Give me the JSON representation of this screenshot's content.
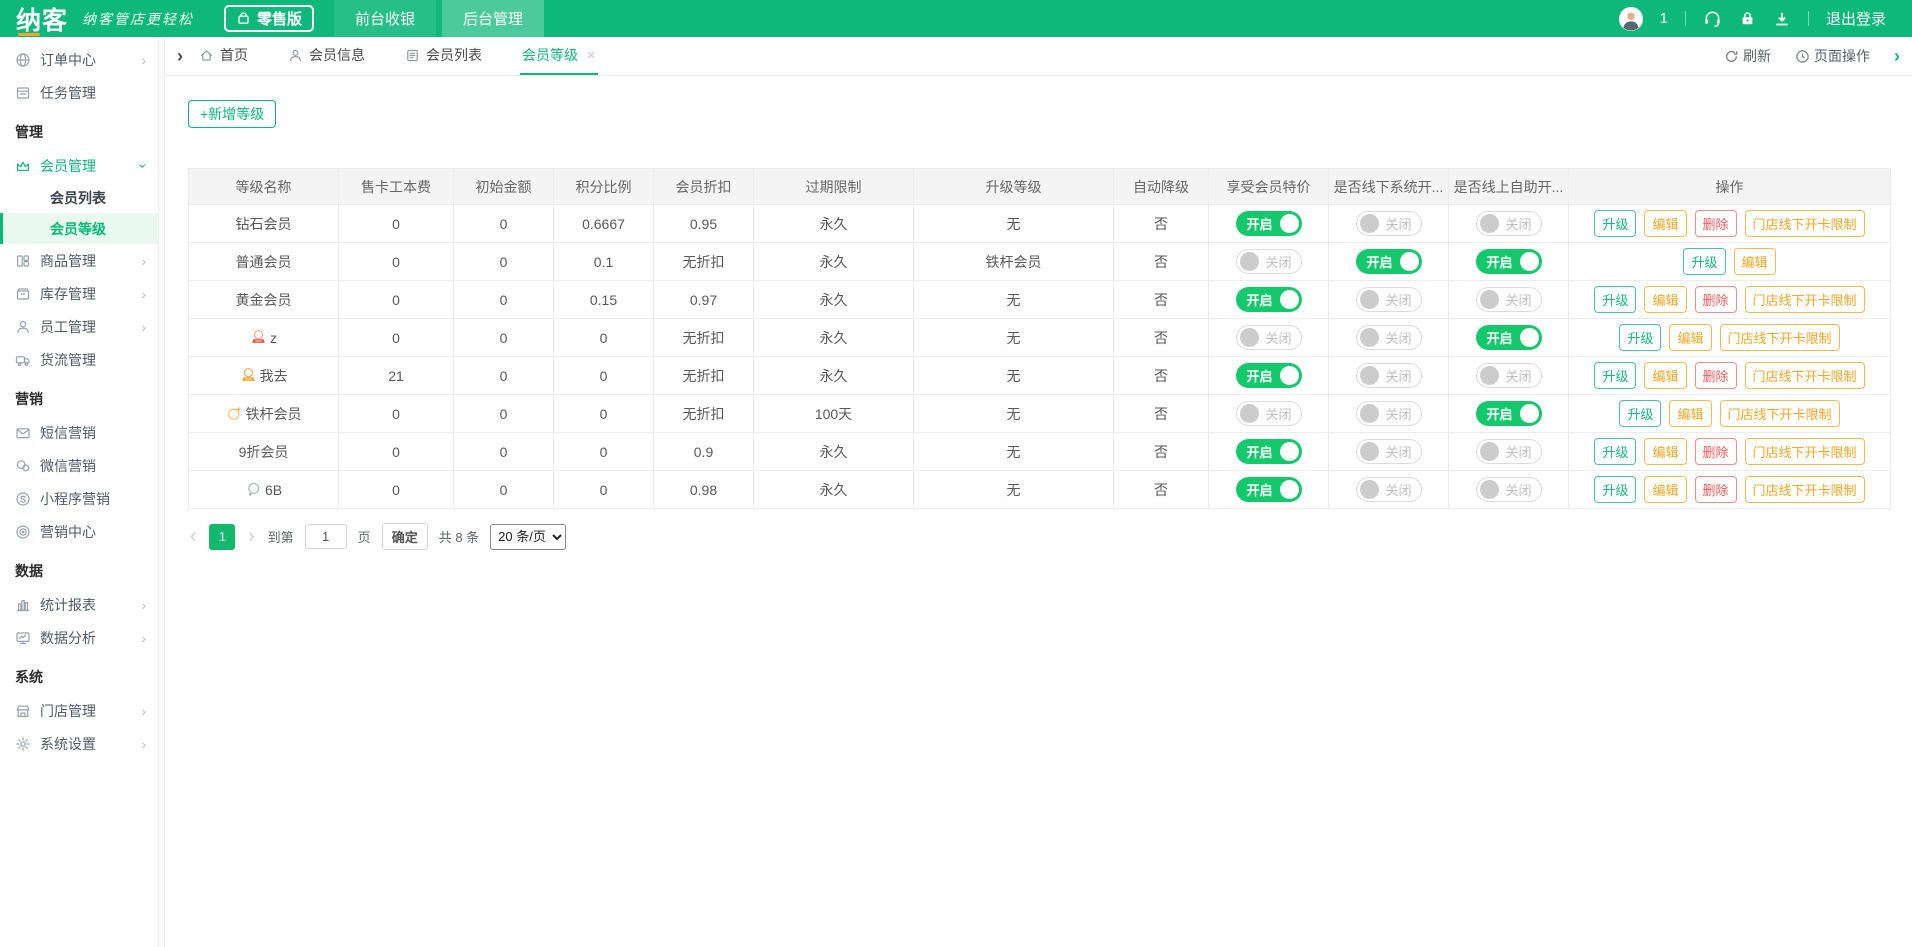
{
  "colors": {
    "brand_green": "#0db87a",
    "toggle_on_green": "#13c96c",
    "accent_orange": "#f5a623",
    "accent_red": "#f45c5c"
  },
  "header": {
    "logo": "纳客",
    "slogan": "纳客管店更轻松",
    "edition": "零售版",
    "nav": [
      {
        "key": "front-cashier",
        "label": "前台收银",
        "active": false
      },
      {
        "key": "backend-admin",
        "label": "后台管理",
        "active": true
      }
    ],
    "user_count": "1",
    "icons": [
      "headset-icon",
      "lock-icon",
      "download-icon"
    ],
    "logout": "退出登录"
  },
  "sidebar": {
    "items": [
      {
        "type": "item",
        "key": "order-center",
        "label": "订单中心",
        "icon": "globe-icon",
        "chevron": "right"
      },
      {
        "type": "item",
        "key": "task-management",
        "label": "任务管理",
        "icon": "tasks-icon",
        "chevron": null
      },
      {
        "type": "section",
        "key": "management",
        "label": "管理"
      },
      {
        "type": "item",
        "key": "member-management",
        "label": "会员管理",
        "icon": "crown-icon",
        "chevron": "down",
        "active": true
      },
      {
        "type": "subitem",
        "key": "member-list",
        "label": "会员列表",
        "active": false
      },
      {
        "type": "subitem",
        "key": "member-level",
        "label": "会员等级",
        "active": true
      },
      {
        "type": "item",
        "key": "product-management",
        "label": "商品管理",
        "icon": "products-icon",
        "chevron": "right"
      },
      {
        "type": "item",
        "key": "inventory-management",
        "label": "库存管理",
        "icon": "box-icon",
        "chevron": "right"
      },
      {
        "type": "item",
        "key": "staff-management",
        "label": "员工管理",
        "icon": "person-icon",
        "chevron": "right"
      },
      {
        "type": "item",
        "key": "logistics-management",
        "label": "货流管理",
        "icon": "truck-icon",
        "chevron": null
      },
      {
        "type": "section",
        "key": "marketing",
        "label": "营销"
      },
      {
        "type": "item",
        "key": "sms-marketing",
        "label": "短信营销",
        "icon": "mail-icon",
        "chevron": null
      },
      {
        "type": "item",
        "key": "wechat-marketing",
        "label": "微信营销",
        "icon": "wechat-icon",
        "chevron": null
      },
      {
        "type": "item",
        "key": "miniprogram-marketing",
        "label": "小程序营销",
        "icon": "miniprogram-icon",
        "chevron": null
      },
      {
        "type": "item",
        "key": "marketing-center",
        "label": "营销中心",
        "icon": "target-icon",
        "chevron": null
      },
      {
        "type": "section",
        "key": "data",
        "label": "数据"
      },
      {
        "type": "item",
        "key": "statistics-report",
        "label": "统计报表",
        "icon": "chart-icon",
        "chevron": "right"
      },
      {
        "type": "item",
        "key": "data-analysis",
        "label": "数据分析",
        "icon": "monitor-icon",
        "chevron": "right"
      },
      {
        "type": "section",
        "key": "system",
        "label": "系统"
      },
      {
        "type": "item",
        "key": "store-management",
        "label": "门店管理",
        "icon": "store-icon",
        "chevron": "right"
      },
      {
        "type": "item",
        "key": "system-settings",
        "label": "系统设置",
        "icon": "gear-icon",
        "chevron": "right"
      }
    ]
  },
  "tabbar": {
    "tabs": [
      {
        "key": "home",
        "label": "首页",
        "icon": "home-icon",
        "active": false,
        "closable": false
      },
      {
        "key": "member-info",
        "label": "会员信息",
        "icon": "user-icon",
        "active": false,
        "closable": false
      },
      {
        "key": "member-list",
        "label": "会员列表",
        "icon": "list-icon",
        "active": false,
        "closable": false
      },
      {
        "key": "member-level",
        "label": "会员等级",
        "icon": null,
        "active": true,
        "closable": true
      }
    ],
    "refresh": "刷新",
    "page_actions": "页面操作"
  },
  "toolbar": {
    "add_level": "+新增等级"
  },
  "table": {
    "columns": [
      "等级名称",
      "售卡工本费",
      "初始金额",
      "积分比例",
      "会员折扣",
      "过期限制",
      "升级等级",
      "自动降级",
      "享受会员特价",
      "是否线下系统开...",
      "是否线上自助开...",
      "操作"
    ],
    "toggle_labels": {
      "on": "开启",
      "off": "关闭"
    },
    "action_labels": {
      "upgrade": "升级",
      "edit": "编辑",
      "delete": "删除",
      "limit": "门店线下开卡限制"
    },
    "rows": [
      {
        "name": "钻石会员",
        "badge": null,
        "card_fee": "0",
        "initial_amount": "0",
        "points_ratio": "0.6667",
        "discount": "0.95",
        "expire": "永久",
        "upgrade_to": "无",
        "auto_downgrade": "否",
        "member_special": "on",
        "offline_open": "off",
        "online_open": "off",
        "actions": [
          "upgrade",
          "edit",
          "delete",
          "limit"
        ]
      },
      {
        "name": "普通会员",
        "badge": null,
        "card_fee": "0",
        "initial_amount": "0",
        "points_ratio": "0.1",
        "discount": "无折扣",
        "expire": "永久",
        "upgrade_to": "铁杆会员",
        "auto_downgrade": "否",
        "member_special": "off",
        "offline_open": "on",
        "online_open": "on",
        "actions": [
          "upgrade",
          "edit"
        ]
      },
      {
        "name": "黄金会员",
        "badge": null,
        "card_fee": "0",
        "initial_amount": "0",
        "points_ratio": "0.15",
        "discount": "0.97",
        "expire": "永久",
        "upgrade_to": "无",
        "auto_downgrade": "否",
        "member_special": "on",
        "offline_open": "off",
        "online_open": "off",
        "actions": [
          "upgrade",
          "edit",
          "delete",
          "limit"
        ]
      },
      {
        "name": "z",
        "badge": "medal-red-icon",
        "card_fee": "0",
        "initial_amount": "0",
        "points_ratio": "0",
        "discount": "无折扣",
        "expire": "永久",
        "upgrade_to": "无",
        "auto_downgrade": "否",
        "member_special": "off",
        "offline_open": "off",
        "online_open": "on",
        "actions": [
          "upgrade",
          "edit",
          "limit"
        ]
      },
      {
        "name": "我去",
        "badge": "medal-orange-icon",
        "card_fee": "21",
        "initial_amount": "0",
        "points_ratio": "0",
        "discount": "无折扣",
        "expire": "永久",
        "upgrade_to": "无",
        "auto_downgrade": "否",
        "member_special": "on",
        "offline_open": "off",
        "online_open": "off",
        "actions": [
          "upgrade",
          "edit",
          "delete",
          "limit"
        ]
      },
      {
        "name": "铁杆会员",
        "badge": "ring-star-icon",
        "card_fee": "0",
        "initial_amount": "0",
        "points_ratio": "0",
        "discount": "无折扣",
        "expire": "100天",
        "upgrade_to": "无",
        "auto_downgrade": "否",
        "member_special": "off",
        "offline_open": "off",
        "online_open": "on",
        "actions": [
          "upgrade",
          "edit",
          "limit"
        ]
      },
      {
        "name": "9折会员",
        "badge": null,
        "card_fee": "0",
        "initial_amount": "0",
        "points_ratio": "0",
        "discount": "0.9",
        "expire": "永久",
        "upgrade_to": "无",
        "auto_downgrade": "否",
        "member_special": "on",
        "offline_open": "off",
        "online_open": "off",
        "actions": [
          "upgrade",
          "edit",
          "delete",
          "limit"
        ]
      },
      {
        "name": "6B",
        "badge": "ring-icon",
        "card_fee": "0",
        "initial_amount": "0",
        "points_ratio": "0",
        "discount": "0.98",
        "expire": "永久",
        "upgrade_to": "无",
        "auto_downgrade": "否",
        "member_special": "on",
        "offline_open": "off",
        "online_open": "off",
        "actions": [
          "upgrade",
          "edit",
          "delete",
          "limit"
        ]
      }
    ]
  },
  "pagination": {
    "prev": "‹",
    "current_page": "1",
    "next": "›",
    "goto_label": "到第",
    "goto_value": "1",
    "goto_unit": "页",
    "confirm": "确定",
    "total": "共 8 条",
    "page_size": "20 条/页"
  }
}
